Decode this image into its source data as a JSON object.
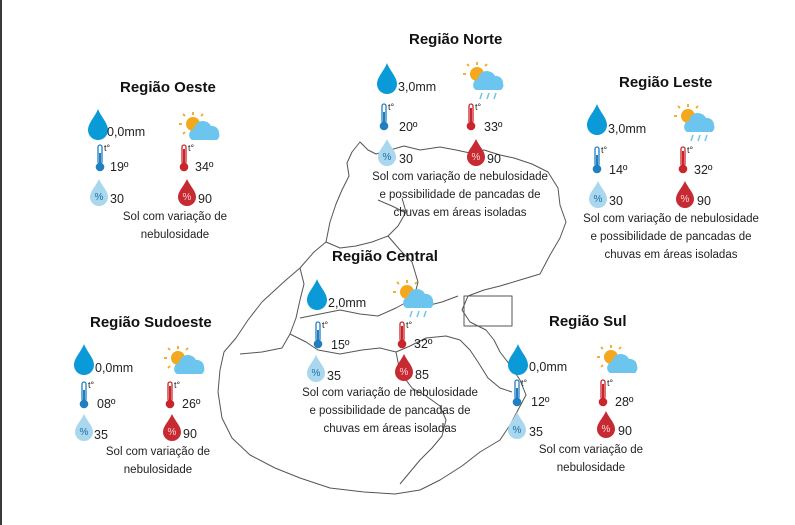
{
  "regions": {
    "oeste": {
      "title": "Região Oeste",
      "rain": "0,0mm",
      "tmin": "19º",
      "tmax": "34º",
      "hmin": "30",
      "hmax": "90",
      "description": "Sol com variação de nebulosidade"
    },
    "norte": {
      "title": "Região Norte",
      "rain": "3,0mm",
      "tmin": "20º",
      "tmax": "33º",
      "hmin": "30",
      "hmax": "90",
      "description": "Sol com variação de nebulosidade e possibilidade de pancadas de chuvas em áreas isoladas"
    },
    "leste": {
      "title": "Região Leste",
      "rain": "3,0mm",
      "tmin": "14º",
      "tmax": "32º",
      "hmin": "30",
      "hmax": "90",
      "description": "Sol com variação de nebulosidade e possibilidade de pancadas de chuvas em áreas isoladas"
    },
    "central": {
      "title": "Região Central",
      "rain": "2,0mm",
      "tmin": "15º",
      "tmax": "32º",
      "hmin": "35",
      "hmax": "85",
      "description": "Sol com variação de nebulosidade e possibilidade de pancadas de chuvas em áreas isoladas"
    },
    "sudoeste": {
      "title": "Região Sudoeste",
      "rain": "0,0mm",
      "tmin": "08º",
      "tmax": "26º",
      "hmin": "35",
      "hmax": "90",
      "description": "Sol com variação de nebulosidade"
    },
    "sul": {
      "title": "Região Sul",
      "rain": "0,0mm",
      "tmin": "12º",
      "tmax": "28º",
      "hmin": "35",
      "hmax": "90",
      "description": "Sol com variação de nebulosidade"
    }
  },
  "icon_labels": {
    "thermometer": "t°",
    "humidity": "%"
  },
  "colors": {
    "rain_drop": "#0a9ad8",
    "thermo_min": "#1f7fc0",
    "thermo_max": "#c9252b",
    "hum_min": "#a9d7ee",
    "hum_max": "#c62a33",
    "cloud": "#6cc5ee",
    "sun": "#f4a81d",
    "map_line": "#555555"
  },
  "icons": {
    "rain": "raindrop-icon",
    "weather_sun_cloud": "sun-cloud-icon",
    "weather_sun_cloud_rain": "sun-cloud-rain-icon",
    "thermo_min": "thermometer-cold-icon",
    "thermo_max": "thermometer-hot-icon",
    "humidity_min": "humidity-low-icon",
    "humidity_max": "humidity-high-icon"
  }
}
